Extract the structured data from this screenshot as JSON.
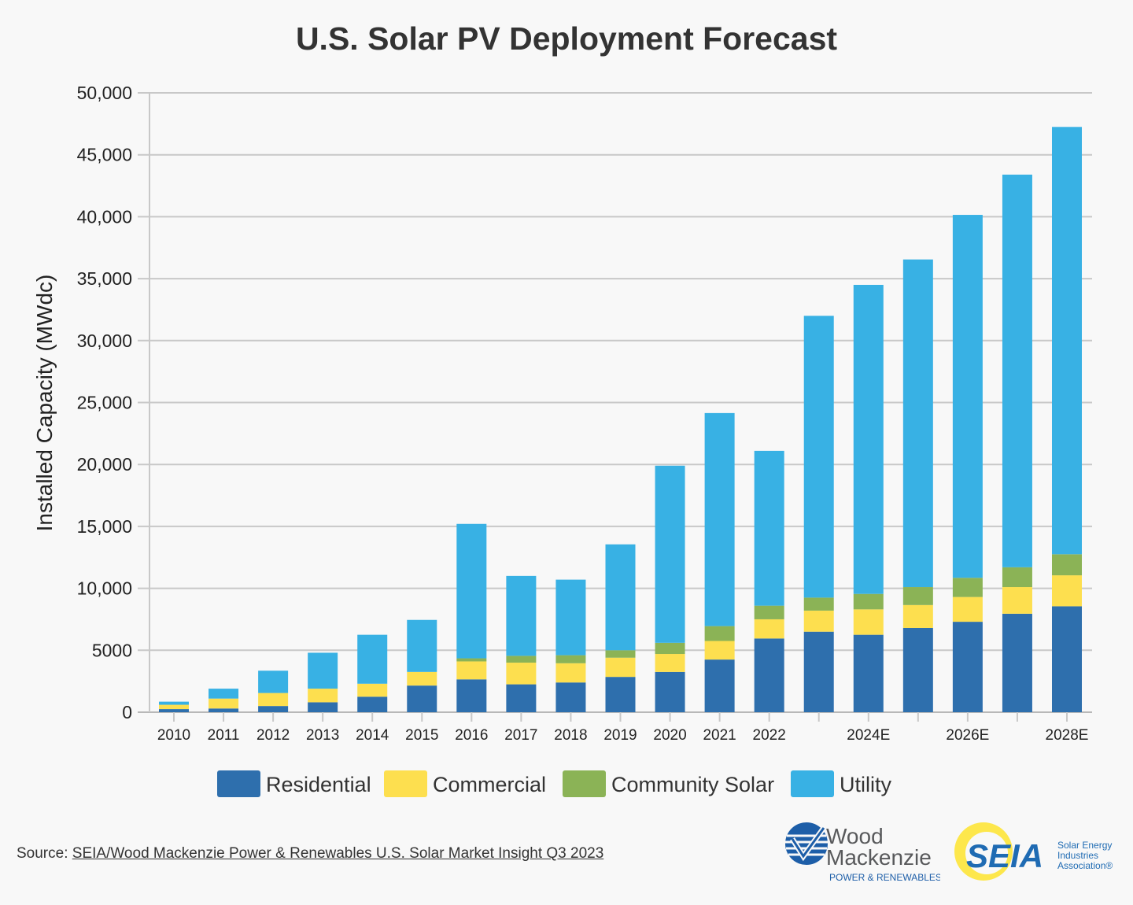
{
  "chart_data": {
    "type": "bar",
    "stacked": true,
    "title": "U.S. Solar PV Deployment Forecast",
    "ylabel": "Installed Capacity (MWdc)",
    "xlabel": "",
    "ylim": [
      0,
      50000
    ],
    "yticks": [
      {
        "value": 0,
        "label": "0"
      },
      {
        "value": 5000,
        "label": "5000"
      },
      {
        "value": 10000,
        "label": "10,000"
      },
      {
        "value": 15000,
        "label": "15,000"
      },
      {
        "value": 20000,
        "label": "20,000"
      },
      {
        "value": 25000,
        "label": "25,000"
      },
      {
        "value": 30000,
        "label": "30,000"
      },
      {
        "value": 35000,
        "label": "35,000"
      },
      {
        "value": 40000,
        "label": "40,000"
      },
      {
        "value": 45000,
        "label": "45,000"
      },
      {
        "value": 50000,
        "label": "50,000"
      }
    ],
    "categories": [
      "2010",
      "2011",
      "2012",
      "2013",
      "2014",
      "2015",
      "2016",
      "2017",
      "2018",
      "2019",
      "2020",
      "2021",
      "2022",
      "",
      "2024E",
      "",
      "2026E",
      "",
      "2028E"
    ],
    "grid": true,
    "legend_position": "bottom",
    "series": [
      {
        "name": "Residential",
        "color": "#2e6fad",
        "values": [
          250,
          300,
          500,
          800,
          1250,
          2150,
          2650,
          2250,
          2400,
          2850,
          3250,
          4250,
          5950,
          6500,
          6250,
          6800,
          7300,
          7950,
          8550
        ]
      },
      {
        "name": "Commercial",
        "color": "#fddf4f",
        "values": [
          350,
          800,
          1050,
          1100,
          1050,
          1100,
          1450,
          1750,
          1550,
          1550,
          1450,
          1500,
          1550,
          1700,
          2050,
          1850,
          2000,
          2150,
          2500
        ]
      },
      {
        "name": "Community Solar",
        "color": "#8bb356",
        "values": [
          0,
          0,
          0,
          0,
          0,
          0,
          250,
          550,
          650,
          600,
          900,
          1200,
          1100,
          1050,
          1250,
          1450,
          1550,
          1600,
          1700
        ]
      },
      {
        "name": "Utility",
        "color": "#38b1e4",
        "values": [
          250,
          800,
          1800,
          2900,
          3950,
          4200,
          10850,
          6450,
          6100,
          8550,
          14300,
          17200,
          12500,
          22750,
          24950,
          26450,
          29300,
          31700,
          34500
        ]
      }
    ]
  },
  "source": {
    "prefix": "Source: ",
    "link_text": "SEIA/Wood Mackenzie Power & Renewables U.S. Solar Market Insight Q3 2023"
  },
  "logos": {
    "wood_mackenzie": {
      "line1": "Wood",
      "line2": "Mackenzie",
      "line3": "POWER & RENEWABLES"
    },
    "seia": {
      "mark": "SEIA",
      "tag1": "Solar Energy",
      "tag2": "Industries",
      "tag3": "Association®"
    }
  }
}
